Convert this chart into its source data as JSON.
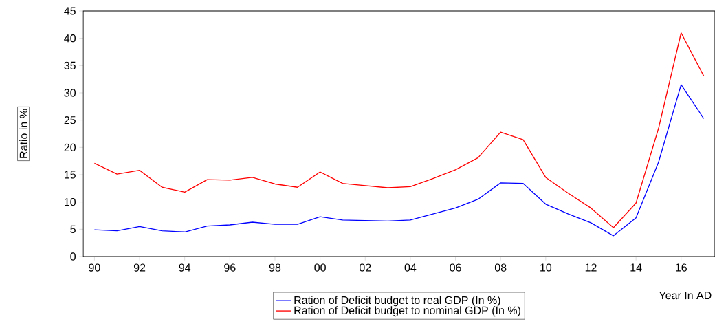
{
  "chart_data": {
    "type": "line",
    "x": [
      1990,
      1991,
      1992,
      1993,
      1994,
      1995,
      1996,
      1997,
      1998,
      1999,
      2000,
      2001,
      2002,
      2003,
      2004,
      2005,
      2006,
      2007,
      2008,
      2009,
      2010,
      2011,
      2012,
      2013,
      2014,
      2015,
      2016,
      2017
    ],
    "series": [
      {
        "name": "Ration of Deficit budget to real GDP (In %)",
        "color": "#0000ff",
        "values": [
          4.9,
          4.7,
          5.5,
          4.7,
          4.5,
          5.6,
          5.8,
          6.3,
          5.9,
          5.9,
          7.3,
          6.7,
          6.6,
          6.5,
          6.7,
          7.8,
          8.9,
          10.5,
          13.5,
          13.4,
          9.6,
          7.8,
          6.2,
          3.8,
          7.1,
          17.3,
          31.5,
          25.3
        ]
      },
      {
        "name": "Ration of Deficit budget to nominal GDP (In %)",
        "color": "#ff0000",
        "values": [
          17.1,
          15.1,
          15.8,
          12.7,
          11.8,
          14.1,
          14.0,
          14.5,
          13.3,
          12.7,
          15.5,
          13.4,
          13.0,
          12.6,
          12.8,
          14.3,
          15.9,
          18.1,
          22.8,
          21.4,
          14.5,
          11.6,
          8.9,
          5.3,
          9.8,
          23.5,
          41.0,
          33.1
        ]
      }
    ],
    "xlabel": "Year In AD",
    "ylabel": "Ratio in %",
    "xlim": [
      1989.5,
      2017.5
    ],
    "xticks": [
      {
        "value": 1990,
        "label": "90"
      },
      {
        "value": 1992,
        "label": "92"
      },
      {
        "value": 1994,
        "label": "94"
      },
      {
        "value": 1996,
        "label": "96"
      },
      {
        "value": 1998,
        "label": "98"
      },
      {
        "value": 2000,
        "label": "00"
      },
      {
        "value": 2002,
        "label": "02"
      },
      {
        "value": 2004,
        "label": "04"
      },
      {
        "value": 2006,
        "label": "06"
      },
      {
        "value": 2008,
        "label": "08"
      },
      {
        "value": 2010,
        "label": "10"
      },
      {
        "value": 2012,
        "label": "12"
      },
      {
        "value": 2014,
        "label": "14"
      },
      {
        "value": 2016,
        "label": "16"
      }
    ],
    "ylim": [
      0,
      45
    ],
    "yticks": [
      0,
      5,
      10,
      15,
      20,
      25,
      30,
      35,
      40,
      45
    ],
    "legend": "bottom",
    "grid": false,
    "marker": "none",
    "line_style": "solid"
  }
}
